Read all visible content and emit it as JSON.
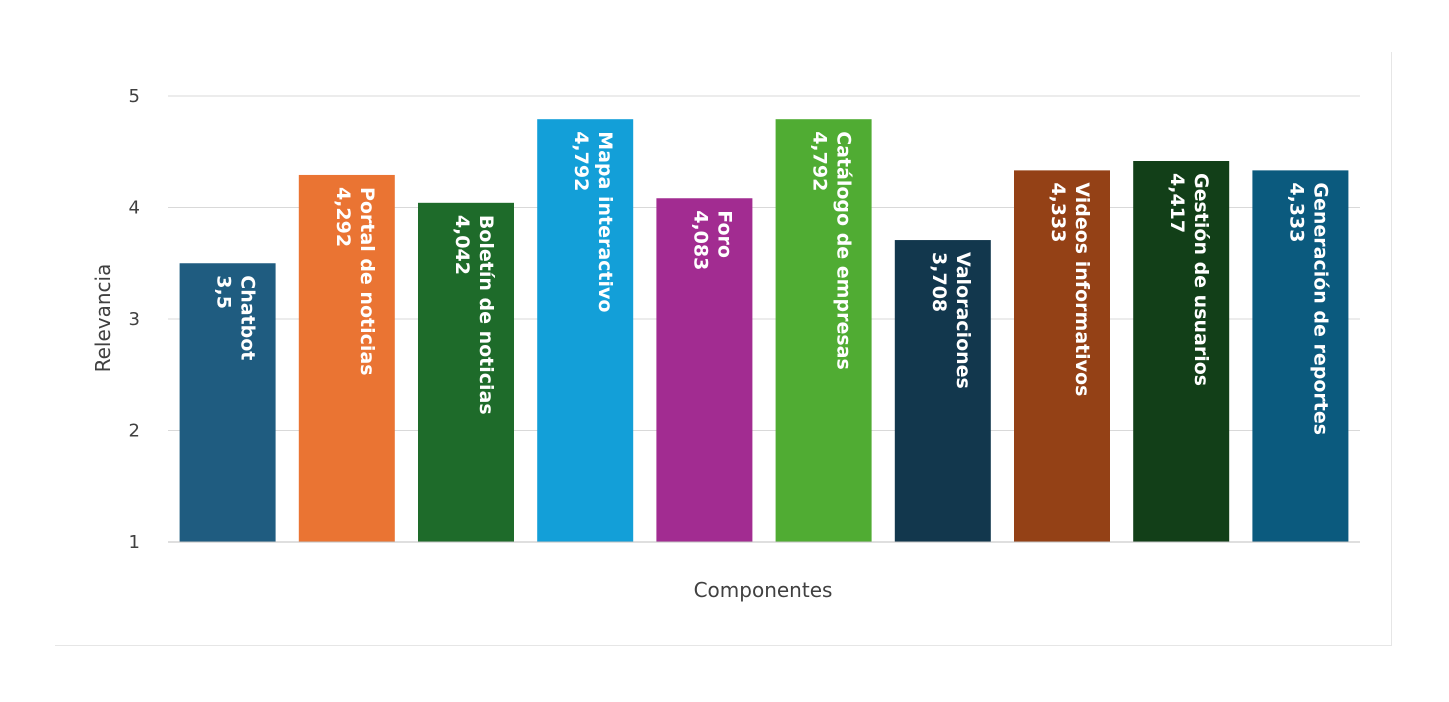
{
  "chart_data": {
    "type": "bar",
    "title": "",
    "xlabel": "Componentes",
    "ylabel": "Relevancia",
    "ylim": [
      1,
      5
    ],
    "yticks": [
      "1",
      "2",
      "3",
      "4",
      "5"
    ],
    "grid": true,
    "categories": [
      "Chatbot",
      "Portal de noticias",
      "Boletín de noticias",
      "Mapa interactivo",
      "Foro",
      "Catálogo de empresas",
      "Valoraciones",
      "Videos informativos",
      "Gestión de usuarios",
      "Generación de reportes"
    ],
    "values": [
      3.5,
      4.292,
      4.042,
      4.792,
      4.083,
      4.792,
      3.708,
      4.333,
      4.417,
      4.333
    ],
    "value_labels": [
      "3,5",
      "4,292",
      "4,042",
      "4,792",
      "4,083",
      "4,792",
      "3,708",
      "4,333",
      "4,417",
      "4,333"
    ],
    "colors": [
      "#1f5c80",
      "#ea7433",
      "#1e6b2a",
      "#139fd8",
      "#a22c91",
      "#50ac33",
      "#12374d",
      "#944116",
      "#123f18",
      "#0b5a7e"
    ]
  }
}
